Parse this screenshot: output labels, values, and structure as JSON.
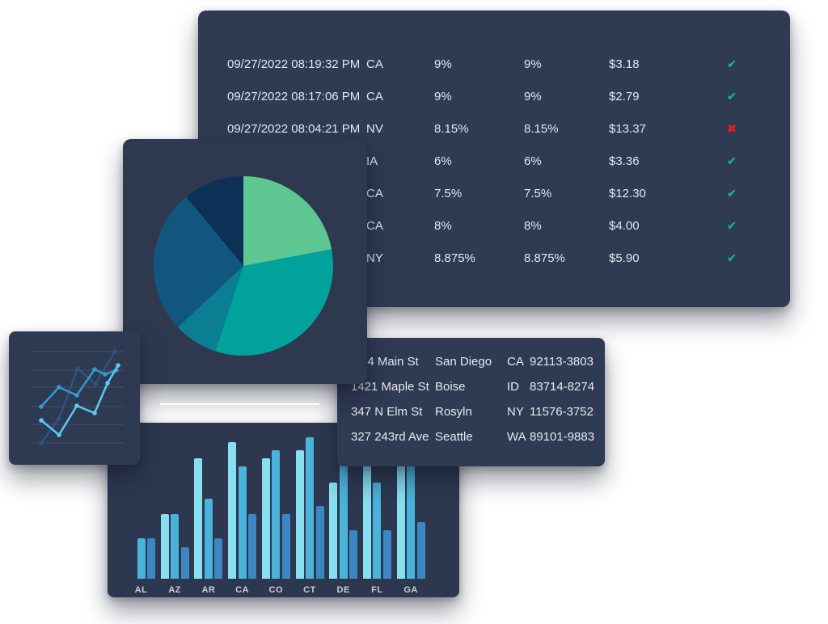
{
  "status_icons": {
    "pass": "✔",
    "fail": "✖"
  },
  "colors": {
    "check": "#1ca98b",
    "cross": "#df1b21",
    "grid": "#424e68"
  },
  "tax_table": {
    "rows": [
      {
        "datetime": "09/27/2022 08:19:32 PM",
        "state": "CA",
        "rate1": "9%",
        "rate2": "9%",
        "amount": "$3.18",
        "status": "pass"
      },
      {
        "datetime": "09/27/2022 08:17:06 PM",
        "state": "CA",
        "rate1": "9%",
        "rate2": "9%",
        "amount": "$2.79",
        "status": "pass"
      },
      {
        "datetime": "09/27/2022 08:04:21 PM",
        "state": "NV",
        "rate1": "8.15%",
        "rate2": "8.15%",
        "amount": "$13.37",
        "status": "fail"
      },
      {
        "datetime": "",
        "state": "IA",
        "rate1": "6%",
        "rate2": "6%",
        "amount": "$3.36",
        "status": "pass"
      },
      {
        "datetime": "",
        "state": "CA",
        "rate1": "7.5%",
        "rate2": "7.5%",
        "amount": "$12.30",
        "status": "pass"
      },
      {
        "datetime": "",
        "state": "CA",
        "rate1": "8%",
        "rate2": "8%",
        "amount": "$4.00",
        "status": "pass"
      },
      {
        "datetime": "",
        "state": "NY",
        "rate1": "8.875%",
        "rate2": "8.875%",
        "amount": "$5.90",
        "status": "pass"
      }
    ]
  },
  "address_table": {
    "rows": [
      {
        "street": "94 Main St",
        "city": "San Diego",
        "state": "CA",
        "zip": "92113-3803"
      },
      {
        "street": "1421 Maple St",
        "city": "Boise",
        "state": "ID",
        "zip": "83714-8274"
      },
      {
        "street": "347 N Elm St",
        "city": "Rosyln",
        "state": "NY",
        "zip": "11576-3752"
      },
      {
        "street": "327 243rd Ave",
        "city": "Seattle",
        "state": "WA",
        "zip": "89101-9883"
      }
    ]
  },
  "chart_data": [
    {
      "type": "pie",
      "values": [
        22,
        33,
        8,
        26,
        11
      ],
      "colors": [
        "#5ec690",
        "#00a29b",
        "#0a7f94",
        "#11567e",
        "#0d3057"
      ],
      "title": "",
      "legend": false
    },
    {
      "type": "bar",
      "categories": [
        "AL",
        "AZ",
        "AR",
        "CA",
        "CO",
        "CT",
        "DE",
        "FL",
        "GA"
      ],
      "series": [
        {
          "name": "series-1",
          "color": "#87dff0",
          "values": [
            0,
            80,
            149,
            169,
            149,
            159,
            119,
            150,
            140
          ]
        },
        {
          "name": "series-2",
          "color": "#49b3d9",
          "values": [
            50,
            80,
            99,
            139,
            159,
            175,
            145,
            119,
            140
          ]
        },
        {
          "name": "series-3",
          "color": "#3c86c1",
          "values": [
            50,
            39,
            50,
            80,
            80,
            90,
            60,
            60,
            70
          ]
        }
      ],
      "ylim": [
        0,
        193
      ],
      "xlabel": "",
      "ylabel": "",
      "grid": false,
      "legend": false
    },
    {
      "type": "line",
      "grid_y": [
        25,
        48,
        69,
        93,
        115,
        138
      ],
      "x_range": [
        28,
        142
      ],
      "series": [
        {
          "name": "line-1",
          "color": "#2b5480",
          "points": [
            [
              40,
              138
            ],
            [
              62,
              108
            ],
            [
              85,
              46
            ],
            [
              107,
              65
            ],
            [
              131,
              25
            ]
          ]
        },
        {
          "name": "line-2",
          "color": "#3399d1",
          "points": [
            [
              40,
              93
            ],
            [
              62,
              69
            ],
            [
              84,
              79
            ],
            [
              106,
              47
            ],
            [
              119,
              53
            ],
            [
              133,
              48
            ]
          ]
        },
        {
          "name": "line-3",
          "color": "#55cdf2",
          "points": [
            [
              40,
              110
            ],
            [
              62,
              128
            ],
            [
              84,
              92
            ],
            [
              106,
              101
            ],
            [
              122,
              64
            ],
            [
              135,
              42
            ]
          ]
        }
      ],
      "title": "",
      "legend": false
    }
  ]
}
